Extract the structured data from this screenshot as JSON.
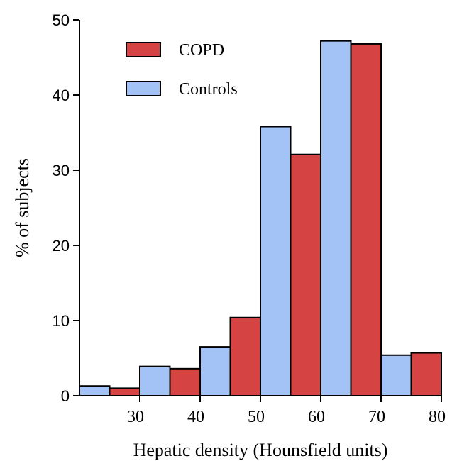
{
  "chart_data": {
    "type": "bar",
    "x_bins": [
      [
        20,
        30
      ],
      [
        30,
        40
      ],
      [
        40,
        50
      ],
      [
        50,
        60
      ],
      [
        60,
        70
      ],
      [
        70,
        80
      ]
    ],
    "series": [
      {
        "name": "Controls",
        "color": "#a3c2f5",
        "values": [
          1.3,
          3.9,
          6.5,
          35.8,
          47.2,
          5.4
        ]
      },
      {
        "name": "COPD",
        "color": "#d64343",
        "values": [
          1.0,
          3.6,
          10.4,
          32.1,
          46.8,
          5.7
        ]
      }
    ],
    "legend_order": [
      "COPD",
      "Controls"
    ],
    "xlabel": "Hepatic density (Hounsfield units)",
    "ylabel": "% of subjects",
    "xlim": [
      20,
      80
    ],
    "ylim": [
      0,
      50
    ],
    "xticks": [
      "30",
      "40",
      "50",
      "60",
      "70",
      "80"
    ],
    "yticks": [
      "0",
      "10",
      "20",
      "30",
      "40",
      "50"
    ],
    "legend_position": "top-left",
    "grid": false
  }
}
